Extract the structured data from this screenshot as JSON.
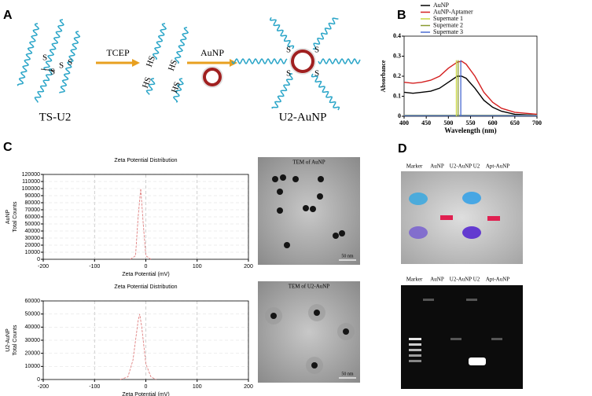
{
  "panel_labels": [
    "A",
    "B",
    "C",
    "D"
  ],
  "diagram": {
    "start": "TS-U2",
    "step1": "TCEP",
    "step2": "AuNP",
    "end": "U2-AuNP",
    "ts_s": [
      "S",
      "S",
      "S",
      "S"
    ],
    "hs": [
      "HS",
      "HS",
      "HS",
      "HS"
    ],
    "end_s": [
      "S",
      "S",
      "S",
      "S"
    ]
  },
  "chart_data": [
    {
      "type": "line",
      "xlabel": "Wavelength (nm)",
      "ylabel": [
        "Absorbance"
      ],
      "xlim": [
        400,
        700
      ],
      "ylim": [
        0,
        0.4
      ],
      "xticks": [
        400,
        450,
        500,
        550,
        600,
        650,
        700
      ],
      "yticks": [
        0,
        0.1,
        0.2,
        0.3,
        0.4
      ],
      "grid": false,
      "legend": "top-right",
      "x": [
        400,
        420,
        440,
        460,
        480,
        500,
        520,
        530,
        540,
        560,
        580,
        600,
        620,
        650,
        700
      ],
      "series": [
        {
          "name": "AuNP",
          "color": "#000000",
          "values": [
            0.12,
            0.115,
            0.12,
            0.125,
            0.14,
            0.17,
            0.2,
            0.2,
            0.19,
            0.14,
            0.08,
            0.045,
            0.025,
            0.01,
            0.005
          ]
        },
        {
          "name": "AuNP-Aptamer",
          "color": "#d42020",
          "values": [
            0.17,
            0.165,
            0.17,
            0.18,
            0.2,
            0.24,
            0.27,
            0.275,
            0.26,
            0.2,
            0.12,
            0.07,
            0.04,
            0.02,
            0.01
          ]
        },
        {
          "name": "Supernate 1",
          "color": "#c8d640",
          "values": [
            0.005,
            0.005,
            0.005,
            0.005,
            0.005,
            0.005,
            0.005,
            0.005,
            0.005,
            0.005,
            0.005,
            0.005,
            0.005,
            0.005,
            0.005
          ]
        },
        {
          "name": "Supernate 2",
          "color": "#8a9a30",
          "values": [
            0.004,
            0.004,
            0.004,
            0.004,
            0.004,
            0.004,
            0.004,
            0.004,
            0.004,
            0.004,
            0.004,
            0.004,
            0.004,
            0.004,
            0.004
          ]
        },
        {
          "name": "Supernate 3",
          "color": "#4a6ad0",
          "values": [
            0.003,
            0.003,
            0.003,
            0.003,
            0.003,
            0.003,
            0.003,
            0.003,
            0.003,
            0.003,
            0.003,
            0.003,
            0.003,
            0.003,
            0.003
          ]
        }
      ],
      "peak_lines": [
        {
          "x": 518,
          "top": 0.28,
          "color": "#c8d640"
        },
        {
          "x": 522,
          "top": 0.28,
          "color": "#8a9a30"
        },
        {
          "x": 528,
          "top": 0.28,
          "color": "#4a6ad0"
        }
      ]
    },
    {
      "type": "line",
      "title": "Zeta Potential Distribution",
      "xlabel": "Zeta Potential (mV)",
      "ylabel": [
        "AuNP",
        "Total Counts"
      ],
      "xlim": [
        -200,
        200
      ],
      "ylim": [
        0,
        120000
      ],
      "xticks": [
        -200,
        -100,
        0,
        100,
        200
      ],
      "yticks": [
        0,
        10000,
        20000,
        30000,
        40000,
        50000,
        60000,
        70000,
        80000,
        90000,
        100000,
        110000,
        120000
      ],
      "grid": true,
      "x": [
        -30,
        -20,
        -15,
        -10,
        -5,
        0,
        10
      ],
      "series": [
        {
          "color": "#e08080",
          "values": [
            0,
            5000,
            60000,
            100000,
            50000,
            5000,
            0
          ]
        }
      ]
    },
    {
      "type": "line",
      "title": "Zeta Potential Distribution",
      "xlabel": "Zeta Potential (mV)",
      "ylabel": [
        "U2-AuNP",
        "Total Counts"
      ],
      "xlim": [
        -200,
        200
      ],
      "ylim": [
        0,
        60000
      ],
      "xticks": [
        -200,
        -100,
        0,
        100,
        200
      ],
      "yticks": [
        0,
        10000,
        20000,
        30000,
        40000,
        50000,
        60000
      ],
      "grid": true,
      "x": [
        -50,
        -35,
        -25,
        -15,
        -12,
        -8,
        0,
        10,
        20
      ],
      "series": [
        {
          "color": "#e08080",
          "values": [
            0,
            2000,
            15000,
            45000,
            50000,
            40000,
            12000,
            2000,
            0
          ]
        }
      ]
    }
  ],
  "tem": [
    {
      "caption": "TEM of AuNP",
      "scale": "50 nm"
    },
    {
      "caption": "TEM of U2-AuNP",
      "scale": "50 nm"
    }
  ],
  "gels": {
    "top": {
      "lanes": [
        "Marker",
        "AuNP",
        "U2-AuNP",
        "U2",
        "Apt-AuNP"
      ]
    },
    "bottom": {
      "lanes": [
        "Marker",
        "AuNP",
        "U2-AuNP",
        "U2",
        "Apt-AuNP"
      ]
    }
  }
}
